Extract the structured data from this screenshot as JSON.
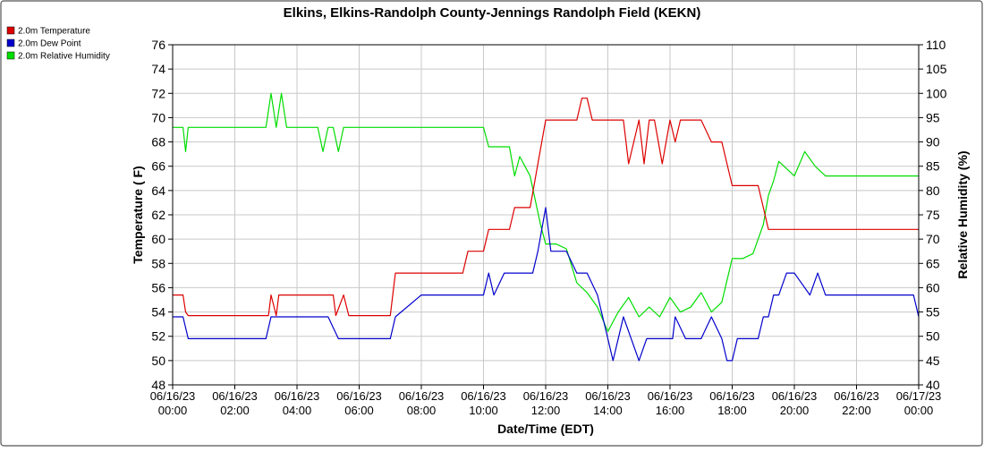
{
  "chart_data": {
    "type": "line",
    "title": "Elkins, Elkins-Randolph County-Jennings Randolph Field (KEKN)",
    "xlabel": "Date/Time (EDT)",
    "ylabel_left": "Temperature ( F)",
    "ylabel_right": "Relative Humidity (%)",
    "ylim_left": [
      48,
      76
    ],
    "ylim_right": [
      40,
      110
    ],
    "xlim": [
      "06/16/23 00:00",
      "06/17/23 00:00"
    ],
    "yticks_left": [
      "48",
      "50",
      "52",
      "54",
      "56",
      "58",
      "60",
      "62",
      "64",
      "66",
      "68",
      "70",
      "72",
      "74",
      "76"
    ],
    "yticks_right": [
      "40",
      "45",
      "50",
      "55",
      "60",
      "65",
      "70",
      "75",
      "80",
      "85",
      "90",
      "95",
      "100",
      "105",
      "110"
    ],
    "xticks": [
      {
        "date": "06/16/23",
        "time": "00:00"
      },
      {
        "date": "06/16/23",
        "time": "02:00"
      },
      {
        "date": "06/16/23",
        "time": "04:00"
      },
      {
        "date": "06/16/23",
        "time": "06:00"
      },
      {
        "date": "06/16/23",
        "time": "08:00"
      },
      {
        "date": "06/16/23",
        "time": "10:00"
      },
      {
        "date": "06/16/23",
        "time": "12:00"
      },
      {
        "date": "06/16/23",
        "time": "14:00"
      },
      {
        "date": "06/16/23",
        "time": "16:00"
      },
      {
        "date": "06/16/23",
        "time": "18:00"
      },
      {
        "date": "06/16/23",
        "time": "20:00"
      },
      {
        "date": "06/16/23",
        "time": "22:00"
      },
      {
        "date": "06/17/23",
        "time": "00:00"
      }
    ],
    "grid": true,
    "legend_position": "top-left",
    "series": [
      {
        "name": "2.0m Temperature",
        "color": "#dd0000",
        "axis": "left",
        "x": [
          "06/16/23 00:00",
          "06/16/23 00:20",
          "06/16/23 00:25",
          "06/16/23 00:30",
          "06/16/23 01:00",
          "06/16/23 01:50",
          "06/16/23 02:00",
          "06/16/23 02:50",
          "06/16/23 03:00",
          "06/16/23 03:05",
          "06/16/23 03:10",
          "06/16/23 03:20",
          "06/16/23 03:25",
          "06/16/23 03:30",
          "06/16/23 04:00",
          "06/16/23 05:00",
          "06/16/23 05:10",
          "06/16/23 05:15",
          "06/16/23 05:30",
          "06/16/23 05:40",
          "06/16/23 06:00",
          "06/16/23 06:50",
          "06/16/23 07:00",
          "06/16/23 07:10",
          "06/16/23 08:00",
          "06/16/23 08:30",
          "06/16/23 09:00",
          "06/16/23 09:20",
          "06/16/23 09:30",
          "06/16/23 10:00",
          "06/16/23 10:10",
          "06/16/23 10:20",
          "06/16/23 10:50",
          "06/16/23 11:00",
          "06/16/23 11:30",
          "06/16/23 11:45",
          "06/16/23 12:00",
          "06/16/23 12:20",
          "06/16/23 12:40",
          "06/16/23 13:00",
          "06/16/23 13:10",
          "06/16/23 13:20",
          "06/16/23 13:30",
          "06/16/23 14:00",
          "06/16/23 14:30",
          "06/16/23 14:40",
          "06/16/23 14:50",
          "06/16/23 15:00",
          "06/16/23 15:10",
          "06/16/23 15:20",
          "06/16/23 15:30",
          "06/16/23 15:45",
          "06/16/23 16:00",
          "06/16/23 16:10",
          "06/16/23 16:20",
          "06/16/23 16:45",
          "06/16/23 17:00",
          "06/16/23 17:20",
          "06/16/23 17:40",
          "06/16/23 18:00",
          "06/16/23 18:10",
          "06/16/23 18:20",
          "06/16/23 18:50",
          "06/16/23 19:00",
          "06/16/23 19:10",
          "06/16/23 19:20",
          "06/16/23 19:30",
          "06/16/23 20:00",
          "06/16/23 21:00",
          "06/16/23 22:00",
          "06/16/23 23:00",
          "06/16/23 23:50",
          "06/17/23 00:00"
        ],
        "values": [
          55.4,
          55.4,
          54.0,
          53.7,
          53.7,
          53.7,
          53.7,
          53.7,
          53.7,
          53.7,
          55.4,
          53.7,
          55.4,
          55.4,
          55.4,
          55.4,
          55.4,
          53.7,
          55.4,
          53.7,
          53.7,
          53.7,
          53.7,
          57.2,
          57.2,
          57.2,
          57.2,
          57.2,
          59.0,
          59.0,
          60.8,
          60.8,
          60.8,
          62.6,
          62.6,
          66.2,
          69.8,
          69.8,
          69.8,
          69.8,
          71.6,
          71.6,
          69.8,
          69.8,
          69.8,
          66.2,
          68.0,
          69.8,
          66.2,
          69.8,
          69.8,
          66.2,
          69.8,
          68.0,
          69.8,
          69.8,
          69.8,
          68.0,
          68.0,
          64.4,
          64.4,
          64.4,
          64.4,
          62.6,
          60.8,
          60.8,
          60.8,
          60.8,
          60.8,
          60.8,
          60.8,
          60.8,
          60.8
        ]
      },
      {
        "name": "2.0m Dew Point",
        "color": "#0000cc",
        "axis": "left",
        "x": [
          "06/16/23 00:00",
          "06/16/23 00:20",
          "06/16/23 00:30",
          "06/16/23 01:00",
          "06/16/23 01:50",
          "06/16/23 02:00",
          "06/16/23 02:50",
          "06/16/23 03:00",
          "06/16/23 03:10",
          "06/16/23 03:30",
          "06/16/23 04:00",
          "06/16/23 04:30",
          "06/16/23 05:00",
          "06/16/23 05:20",
          "06/16/23 05:30",
          "06/16/23 06:00",
          "06/16/23 06:40",
          "06/16/23 07:00",
          "06/16/23 07:10",
          "06/16/23 08:00",
          "06/16/23 08:30",
          "06/16/23 09:00",
          "06/16/23 09:20",
          "06/16/23 09:30",
          "06/16/23 10:00",
          "06/16/23 10:10",
          "06/16/23 10:20",
          "06/16/23 10:40",
          "06/16/23 11:00",
          "06/16/23 11:20",
          "06/16/23 11:35",
          "06/16/23 11:45",
          "06/16/23 12:00",
          "06/16/23 12:10",
          "06/16/23 12:30",
          "06/16/23 12:40",
          "06/16/23 13:00",
          "06/16/23 13:20",
          "06/16/23 13:40",
          "06/16/23 14:00",
          "06/16/23 14:10",
          "06/16/23 14:30",
          "06/16/23 14:45",
          "06/16/23 15:00",
          "06/16/23 15:15",
          "06/16/23 15:30",
          "06/16/23 16:00",
          "06/16/23 16:05",
          "06/16/23 16:10",
          "06/16/23 16:30",
          "06/16/23 17:00",
          "06/16/23 17:20",
          "06/16/23 17:40",
          "06/16/23 17:50",
          "06/16/23 18:00",
          "06/16/23 18:10",
          "06/16/23 18:30",
          "06/16/23 18:50",
          "06/16/23 19:00",
          "06/16/23 19:10",
          "06/16/23 19:20",
          "06/16/23 19:30",
          "06/16/23 19:45",
          "06/16/23 20:00",
          "06/16/23 20:30",
          "06/16/23 20:45",
          "06/16/23 21:00",
          "06/16/23 22:00",
          "06/16/23 23:00",
          "06/16/23 23:50",
          "06/17/23 00:00"
        ],
        "values": [
          53.6,
          53.6,
          51.8,
          51.8,
          51.8,
          51.8,
          51.8,
          51.8,
          53.6,
          53.6,
          53.6,
          53.6,
          53.6,
          51.8,
          51.8,
          51.8,
          51.8,
          51.8,
          53.6,
          55.4,
          55.4,
          55.4,
          55.4,
          55.4,
          55.4,
          57.2,
          55.4,
          57.2,
          57.2,
          57.2,
          57.2,
          59.0,
          62.6,
          59.0,
          59.0,
          59.0,
          57.2,
          57.2,
          55.4,
          51.8,
          50.0,
          53.6,
          51.8,
          50.0,
          51.8,
          51.8,
          51.8,
          51.8,
          53.6,
          51.8,
          51.8,
          53.6,
          51.8,
          50.0,
          50.0,
          51.8,
          51.8,
          51.8,
          53.6,
          53.6,
          55.4,
          55.4,
          57.2,
          57.2,
          55.4,
          57.2,
          55.4,
          55.4,
          55.4,
          55.4,
          53.6
        ]
      },
      {
        "name": "2.0m Relative Humidity",
        "color": "#00dd00",
        "axis": "right",
        "x": [
          "06/16/23 00:00",
          "06/16/23 00:20",
          "06/16/23 00:25",
          "06/16/23 00:30",
          "06/16/23 01:00",
          "06/16/23 02:00",
          "06/16/23 03:00",
          "06/16/23 03:10",
          "06/16/23 03:20",
          "06/16/23 03:30",
          "06/16/23 03:40",
          "06/16/23 03:50",
          "06/16/23 04:00",
          "06/16/23 04:40",
          "06/16/23 04:50",
          "06/16/23 05:00",
          "06/16/23 05:10",
          "06/16/23 05:20",
          "06/16/23 05:30",
          "06/16/23 06:00",
          "06/16/23 06:30",
          "06/16/23 07:00",
          "06/16/23 08:00",
          "06/16/23 09:00",
          "06/16/23 10:00",
          "06/16/23 10:10",
          "06/16/23 10:50",
          "06/16/23 11:00",
          "06/16/23 11:10",
          "06/16/23 11:20",
          "06/16/23 11:30",
          "06/16/23 11:40",
          "06/16/23 11:50",
          "06/16/23 12:00",
          "06/16/23 12:20",
          "06/16/23 12:40",
          "06/16/23 13:00",
          "06/16/23 13:20",
          "06/16/23 13:40",
          "06/16/23 14:00",
          "06/16/23 14:20",
          "06/16/23 14:40",
          "06/16/23 15:00",
          "06/16/23 15:20",
          "06/16/23 15:40",
          "06/16/23 16:00",
          "06/16/23 16:20",
          "06/16/23 16:40",
          "06/16/23 17:00",
          "06/16/23 17:20",
          "06/16/23 17:40",
          "06/16/23 18:00",
          "06/16/23 18:20",
          "06/16/23 18:40",
          "06/16/23 19:00",
          "06/16/23 19:10",
          "06/16/23 19:20",
          "06/16/23 19:30",
          "06/16/23 20:00",
          "06/16/23 20:20",
          "06/16/23 20:40",
          "06/16/23 21:00",
          "06/16/23 22:00",
          "06/16/23 23:00",
          "06/16/23 23:50",
          "06/17/23 00:00"
        ],
        "values": [
          93,
          93,
          88,
          93,
          93,
          93,
          93,
          100,
          93,
          100,
          93,
          93,
          93,
          93,
          88,
          93,
          93,
          88,
          93,
          93,
          93,
          93,
          93,
          93,
          93,
          89,
          89,
          83,
          87,
          85,
          83,
          78,
          73,
          69,
          69,
          68,
          61,
          59,
          56,
          51,
          55,
          58,
          54,
          56,
          54,
          58,
          55,
          56,
          59,
          55,
          57,
          66,
          66,
          67,
          73,
          79,
          82,
          86,
          83,
          88,
          85,
          83,
          83,
          83,
          83,
          83
        ]
      }
    ]
  }
}
